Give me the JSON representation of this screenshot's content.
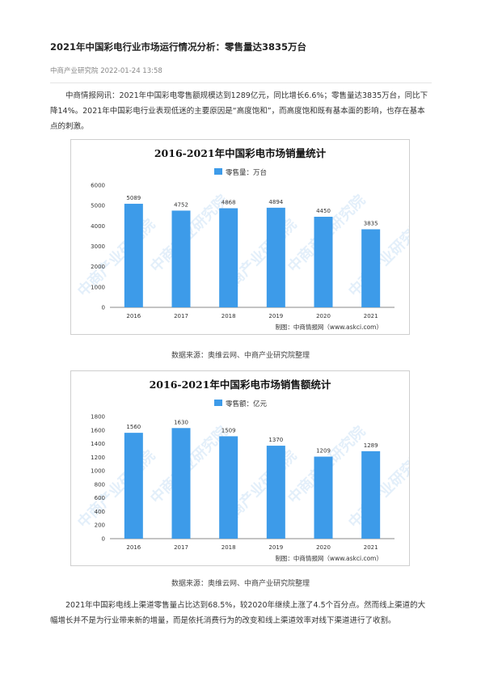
{
  "article": {
    "title": "2021年中国彩电行业市场运行情况分析：零售量达3835万台",
    "meta": "中商产业研究院 2022-01-24 13:58",
    "para1": "中商情报网讯：2021年中国彩电零售额规模达到1289亿元，同比增长6.6%；零售量达3835万台，同比下降14%。2021年中国彩电行业表现低迷的主要原因是“高度饱和”，而高度饱和既有基本面的影响，也存在基本点的刺激。",
    "source1": "数据来源：奥维云网、中商产业研究院整理",
    "source2": "数据来源：奥维云网、中商产业研究院整理",
    "para2": "2021年中国彩电线上渠道零售量占比达到68.5%，较2020年继续上涨了4.5个百分点。然而线上渠道的大幅增长并不是为行业带来新的增量，而是依托消费行为的改变和线上渠道效率对线下渠道进行了收割。"
  },
  "watermark_text": "中商产业研究院",
  "colors": {
    "bar": "#3d9be9",
    "axis": "#888888"
  },
  "chart_data": [
    {
      "type": "bar",
      "title": "2016-2021年中国彩电市场销量统计",
      "legend": "零售量：万台",
      "credit": "制图：中商情报网（www.askci.com）",
      "categories": [
        "2016",
        "2017",
        "2018",
        "2019",
        "2020",
        "2021"
      ],
      "values": [
        5089,
        4752,
        4868,
        4894,
        4450,
        3835
      ],
      "ylim": [
        0,
        6000
      ],
      "yticks": [
        0,
        1000,
        2000,
        3000,
        4000,
        5000,
        6000
      ],
      "grid": false,
      "legend_position": "top"
    },
    {
      "type": "bar",
      "title": "2016-2021年中国彩电市场销售额统计",
      "legend": "零售额：亿元",
      "credit": "制图：中商情报网（www.askci.com）",
      "categories": [
        "2016",
        "2017",
        "2018",
        "2019",
        "2020",
        "2021"
      ],
      "values": [
        1560,
        1630,
        1509,
        1370,
        1209,
        1289
      ],
      "ylim": [
        0,
        1800
      ],
      "yticks": [
        0,
        200,
        400,
        600,
        800,
        1000,
        1200,
        1400,
        1600,
        1800
      ],
      "grid": false,
      "legend_position": "top"
    }
  ]
}
